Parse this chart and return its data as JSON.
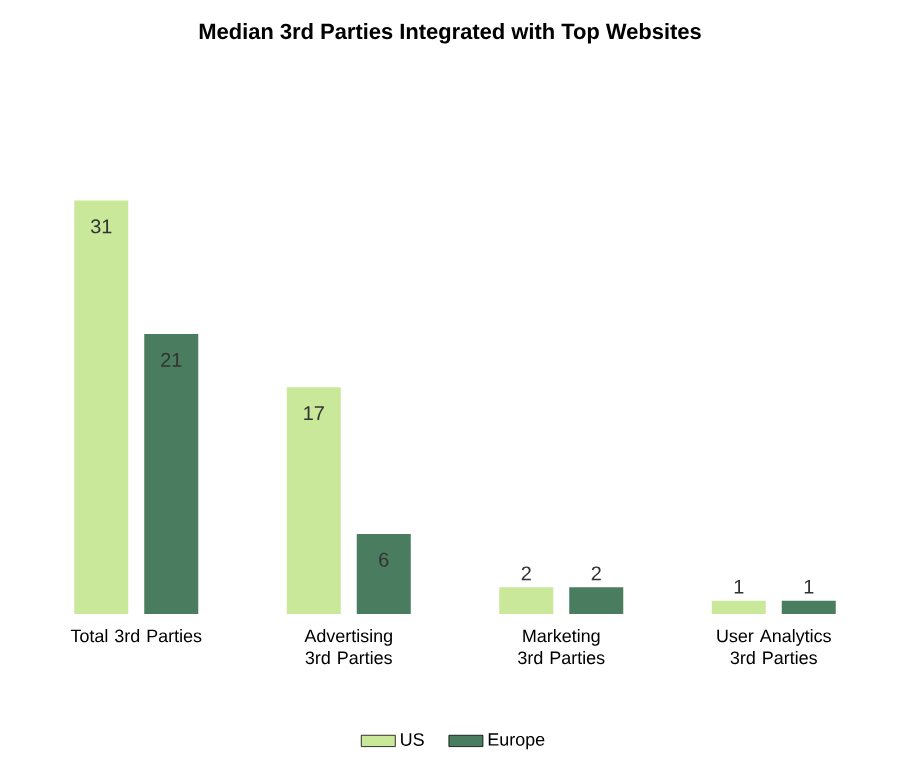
{
  "chart_data": {
    "type": "bar",
    "title": "Median 3rd Parties Integrated with Top Websites",
    "categories": [
      "Total 3rd Parties",
      "Advertising 3rd Parties",
      "Marketing 3rd Parties",
      "User Analytics 3rd Parties"
    ],
    "series": [
      {
        "name": "US",
        "color": "#c9e89a",
        "values": [
          31,
          17,
          2,
          1
        ]
      },
      {
        "name": "Europe",
        "color": "#4a7c5f",
        "values": [
          21,
          6,
          2,
          1
        ]
      }
    ],
    "data_labels": true,
    "legend": "bottom"
  }
}
